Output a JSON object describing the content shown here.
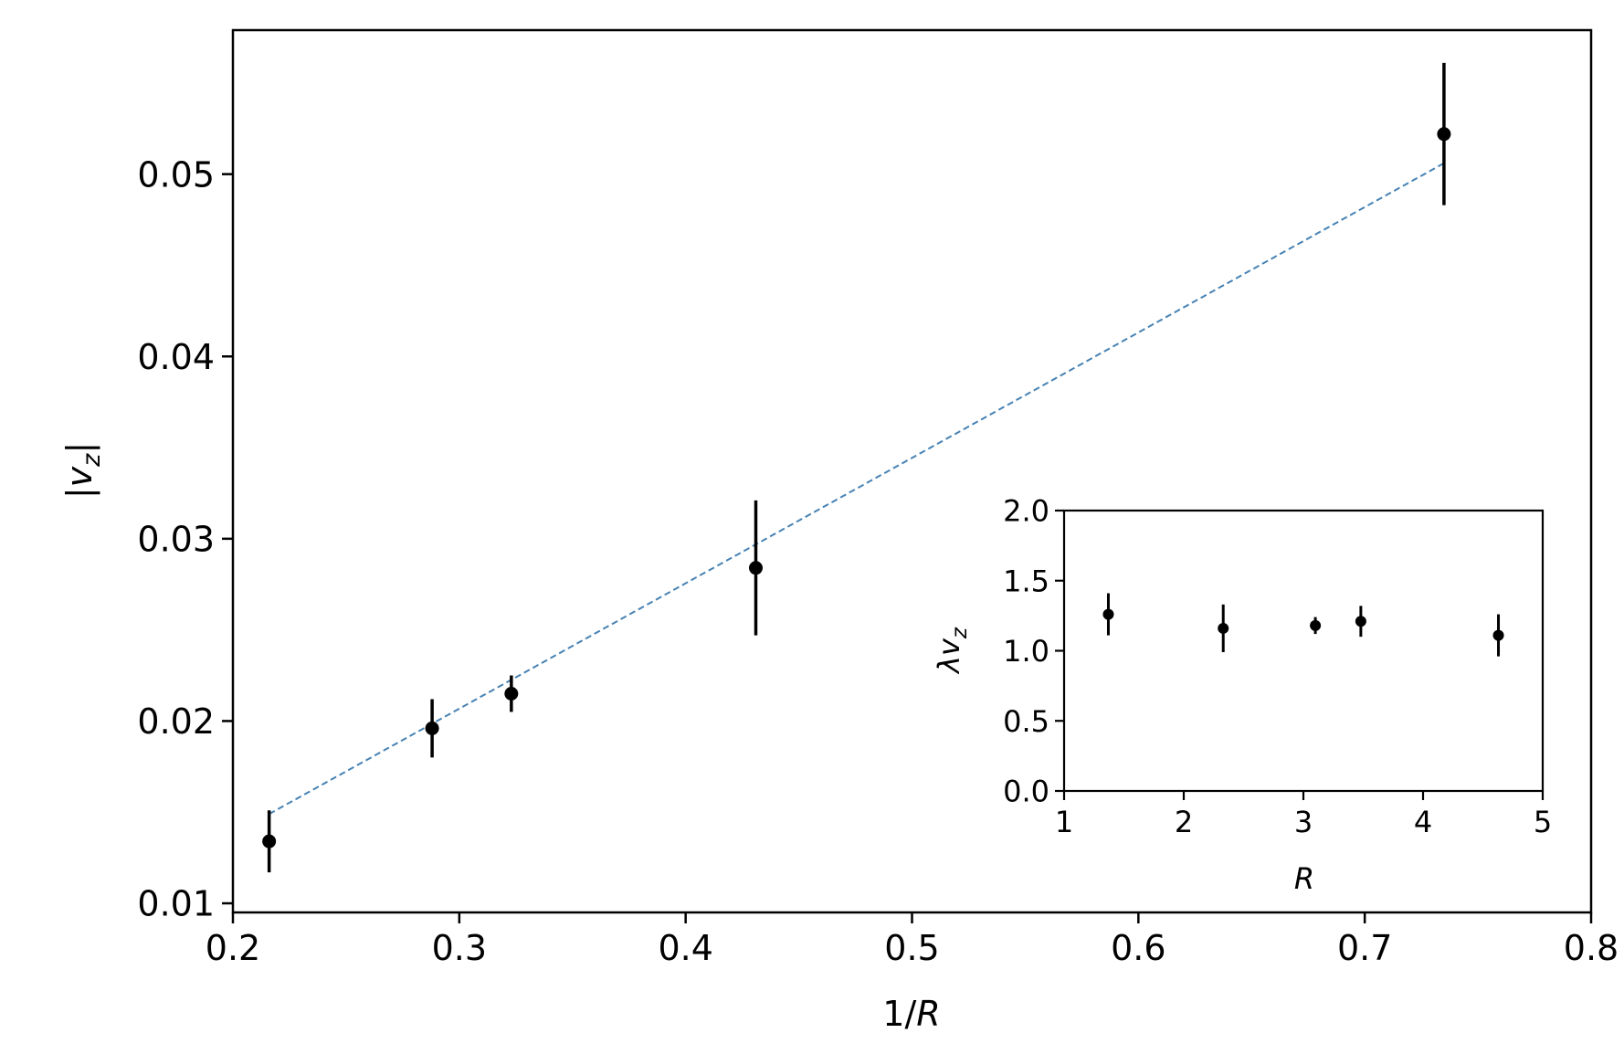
{
  "chart_data": [
    {
      "type": "scatter",
      "xlabel": {
        "prefix": "1/",
        "italic": "R"
      },
      "ylabel": "|v_z|",
      "xlim": [
        0.2,
        0.8
      ],
      "ylim": [
        0.0095,
        0.0579
      ],
      "xticks": [
        0.2,
        0.3,
        0.4,
        0.5,
        0.6,
        0.7,
        0.8
      ],
      "yticks": [
        0.01,
        0.02,
        0.03,
        0.04,
        0.05
      ],
      "xtick_labels": [
        "0.2",
        "0.3",
        "0.4",
        "0.5",
        "0.6",
        "0.7",
        "0.8"
      ],
      "ytick_labels": [
        "0.01",
        "0.02",
        "0.03",
        "0.04",
        "0.05"
      ],
      "grid": false,
      "points": [
        {
          "x": 0.216,
          "y": 0.0134,
          "err": 0.0017
        },
        {
          "x": 0.288,
          "y": 0.0196,
          "err": 0.0016
        },
        {
          "x": 0.323,
          "y": 0.0215,
          "err": 0.001
        },
        {
          "x": 0.431,
          "y": 0.0284,
          "err": 0.0037
        },
        {
          "x": 0.735,
          "y": 0.0522,
          "err": 0.0039
        }
      ],
      "fit_line": {
        "x": [
          0.216,
          0.735
        ],
        "y": [
          0.0149,
          0.0506
        ],
        "style": "dashed",
        "color": "#4682b4"
      },
      "marker_color": "#000000"
    },
    {
      "type": "scatter",
      "role": "inset",
      "xlabel": {
        "prefix": "",
        "italic": "R"
      },
      "ylabel": "λv_z",
      "xlim": [
        1,
        5
      ],
      "ylim": [
        0.0,
        2.0
      ],
      "xticks": [
        1,
        2,
        3,
        4,
        5
      ],
      "yticks": [
        0.0,
        0.5,
        1.0,
        1.5,
        2.0
      ],
      "xtick_labels": [
        "1",
        "2",
        "3",
        "4",
        "5"
      ],
      "ytick_labels": [
        "0.0",
        "0.5",
        "1.0",
        "1.5",
        "2.0"
      ],
      "grid": false,
      "points": [
        {
          "x": 1.37,
          "y": 1.26,
          "err": 0.15
        },
        {
          "x": 2.33,
          "y": 1.16,
          "err": 0.17
        },
        {
          "x": 3.1,
          "y": 1.18,
          "err": 0.06
        },
        {
          "x": 3.48,
          "y": 1.21,
          "err": 0.11
        },
        {
          "x": 4.63,
          "y": 1.11,
          "err": 0.15
        }
      ],
      "marker_color": "#000000"
    }
  ]
}
